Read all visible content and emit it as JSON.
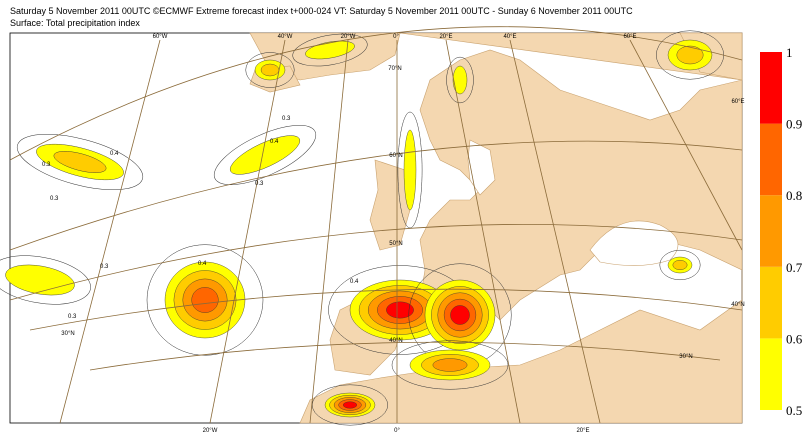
{
  "header": {
    "line1": "Saturday 5 November 2011 00UTC ©ECMWF Extreme forecast index t+000-024 VT: Saturday 5 November 2011 00UTC - Sunday 6 November 2011 00UTC",
    "line2": "Surface: Total precipitation index"
  },
  "map": {
    "graticule_labels": [
      "60°W",
      "40°W",
      "20°W",
      "0°",
      "20°E",
      "40°E",
      "60°E",
      "70°N",
      "60°N",
      "50°N",
      "40°N",
      "30°N",
      "60°E",
      "40°N",
      "30°N",
      "20°W",
      "0°",
      "20°E"
    ],
    "contour_labels": [
      "0.4",
      "0.3",
      "0.3",
      "0.4",
      "0.3",
      "0.4",
      "0.3",
      "0.3",
      "0.4",
      "0.3"
    ]
  },
  "legend": {
    "levels": [
      0.5,
      0.6,
      0.7,
      0.8,
      0.9,
      1
    ],
    "colors": [
      "#ffff00",
      "#ffcc00",
      "#ff9900",
      "#ff6600",
      "#ff0000"
    ]
  }
}
